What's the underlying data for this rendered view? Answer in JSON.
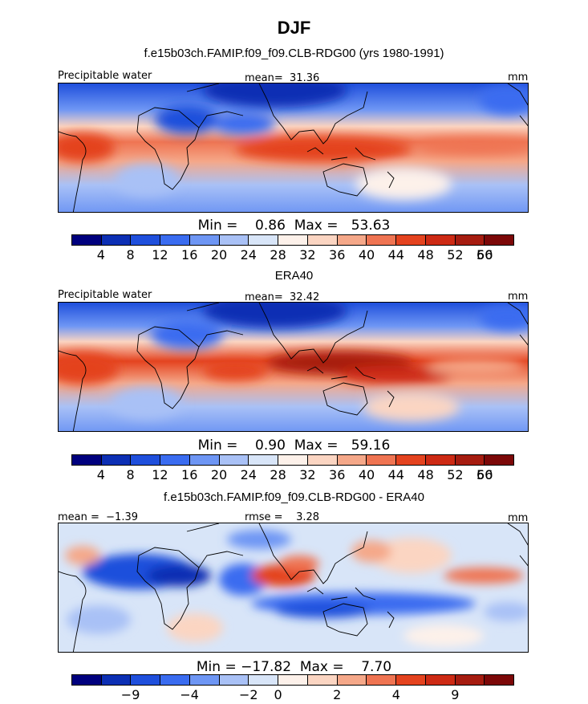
{
  "title": "DJF",
  "units": "mm",
  "palette": [
    "#00007e",
    "#0c2fb4",
    "#1f4fdc",
    "#3a6cf0",
    "#6e96f4",
    "#a9c1f6",
    "#d8e5f8",
    "#fdf1ea",
    "#fbd5c2",
    "#f5a889",
    "#ef7452",
    "#e4431f",
    "#cd2a14",
    "#a61c10",
    "#7c0808"
  ],
  "panels": [
    {
      "title": "f.e15b03ch.FAMIP.f09_f09.CLB-RDG00 (yrs 1980-1991)",
      "variable": "Precipitable water",
      "stat_text": "mean=  31.36",
      "units": "mm",
      "minmax_text": "Min =    0.86  Max =   53.63",
      "ticks": [
        "4",
        "8",
        "12",
        "16",
        "20",
        "24",
        "28",
        "32",
        "36",
        "40",
        "44",
        "48",
        "52",
        "56",
        "60"
      ]
    },
    {
      "title": "ERA40",
      "variable": "Precipitable water",
      "stat_text": "mean=  32.42",
      "units": "mm",
      "minmax_text": "Min =    0.90  Max =   59.16",
      "ticks": [
        "4",
        "8",
        "12",
        "16",
        "20",
        "24",
        "28",
        "32",
        "36",
        "40",
        "44",
        "48",
        "52",
        "56",
        "60"
      ]
    },
    {
      "title": "f.e15b03ch.FAMIP.f09_f09.CLB-RDG00 - ERA40",
      "mean_text": "mean =  −1.39",
      "rmse_text": "rmse =    3.28",
      "units": "mm",
      "minmax_text": "Min = −17.82  Max =    7.70",
      "ticks": [
        "−9",
        "−4",
        "−2",
        "0",
        "2",
        "4",
        "9"
      ]
    }
  ],
  "chart_data": [
    {
      "type": "heatmap",
      "title": "f.e15b03ch.FAMIP.f09_f09.CLB-RDG00 (yrs 1980-1991)",
      "variable": "Precipitable water",
      "units": "mm",
      "season": "DJF",
      "mean": 31.36,
      "min": 0.86,
      "max": 53.63,
      "colorbar_levels": [
        4,
        8,
        12,
        16,
        20,
        24,
        28,
        32,
        36,
        40,
        44,
        48,
        52,
        56,
        60
      ]
    },
    {
      "type": "heatmap",
      "title": "ERA40",
      "variable": "Precipitable water",
      "units": "mm",
      "season": "DJF",
      "mean": 32.42,
      "min": 0.9,
      "max": 59.16,
      "colorbar_levels": [
        4,
        8,
        12,
        16,
        20,
        24,
        28,
        32,
        36,
        40,
        44,
        48,
        52,
        56,
        60
      ]
    },
    {
      "type": "heatmap",
      "title": "f.e15b03ch.FAMIP.f09_f09.CLB-RDG00 - ERA40",
      "units": "mm",
      "season": "DJF",
      "mean": -1.39,
      "rmse": 3.28,
      "min": -17.82,
      "max": 7.7,
      "colorbar_levels": [
        -9,
        -4,
        -2,
        0,
        2,
        4,
        9
      ]
    }
  ]
}
